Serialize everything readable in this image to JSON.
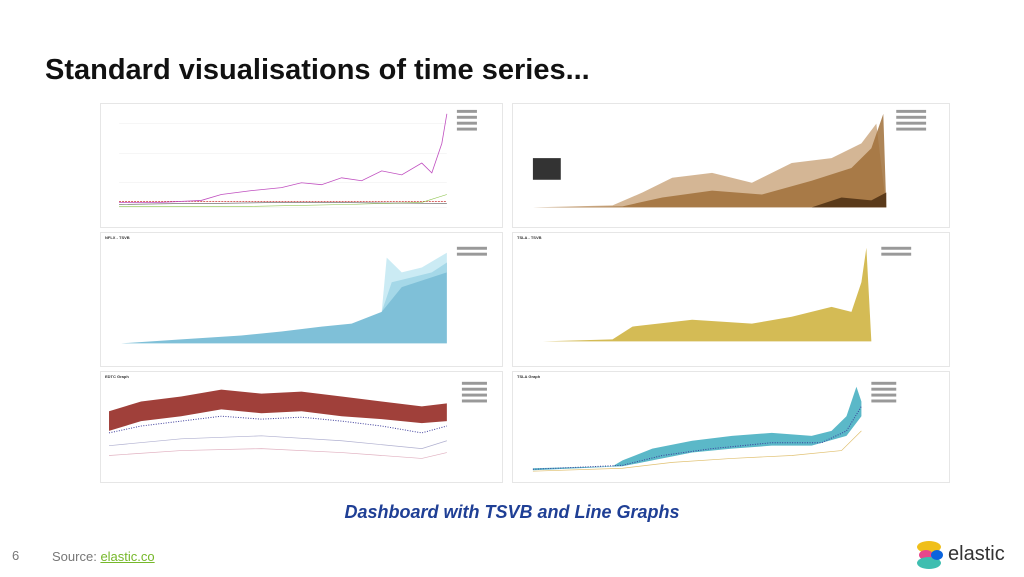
{
  "title": "Standard visualisations of time series...",
  "panel_titles": [
    "NFLX - TSVB",
    "TSLA - TSVB",
    "EDTC Graph",
    "TSLA Graph"
  ],
  "caption": "Dashboard with TSVB and Line Graphs",
  "page_number": "6",
  "source": {
    "label": "Source:",
    "link": "elastic.co"
  },
  "logo": "elastic"
}
